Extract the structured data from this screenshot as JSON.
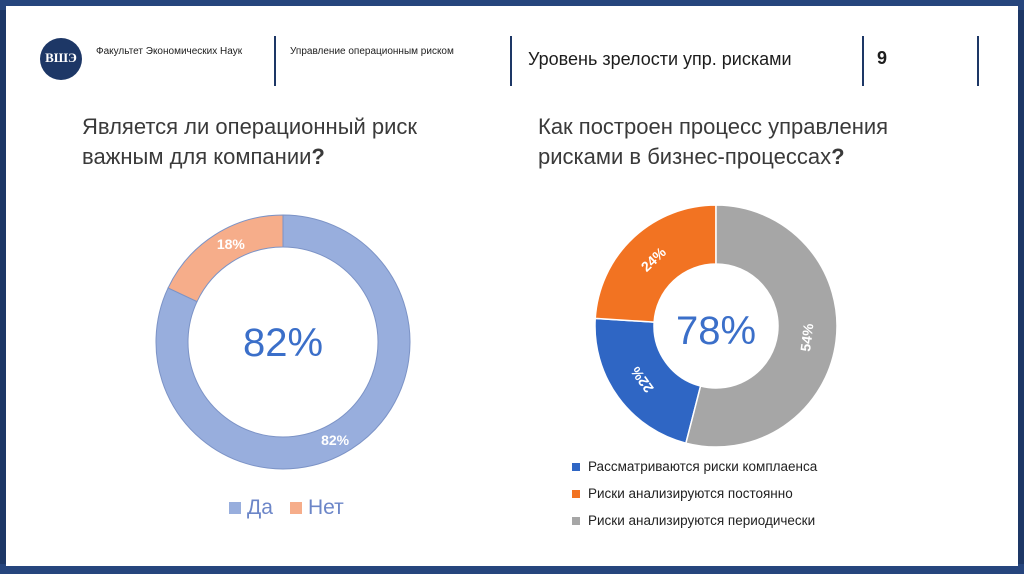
{
  "header": {
    "faculty": "Факультет Экономических Наук",
    "course": "Управление операционным риском",
    "title": "Уровень зрелости упр. рисками",
    "page_number": "9",
    "logo_letters": "ВШЭ"
  },
  "colors": {
    "frame": "#1d3766",
    "da": "#98aedd",
    "net": "#f6ad8a",
    "blue": "#2f66c4",
    "orange": "#f27322",
    "gray": "#a6a6a6",
    "center_text": "#3b6fc9"
  },
  "chart_data": [
    {
      "type": "pie",
      "variant": "donut",
      "title": "Является ли операционный риск важным для компании?",
      "title_main": "Является ли операционный риск",
      "title_line2": "важным для компании",
      "title_mark": "?",
      "center_label": "82%",
      "slices": [
        {
          "name": "Да",
          "value": 82,
          "label": "82%"
        },
        {
          "name": "Нет",
          "value": 18,
          "label": "18%"
        }
      ],
      "legend": [
        "Да",
        "Нет"
      ],
      "legend_position": "bottom"
    },
    {
      "type": "pie",
      "variant": "donut",
      "title": "Как построен процесс управления рисками в бизнес-процессах?",
      "title_line1": "Как построен процесс управления",
      "title_line2": "рисками в бизнес-процессах",
      "title_mark": "?",
      "center_label": "78%",
      "slices": [
        {
          "name": "Рассматриваются риски комплаенса",
          "value": 22,
          "label": "22%"
        },
        {
          "name": "Риски анализируются постоянно",
          "value": 24,
          "label": "24%"
        },
        {
          "name": "Риски анализируются периодически",
          "value": 54,
          "label": "54%"
        }
      ],
      "legend": [
        "Рассматриваются риски комплаенса",
        "Риски анализируются постоянно",
        "Риски анализируются периодически"
      ],
      "legend_position": "bottom"
    }
  ]
}
